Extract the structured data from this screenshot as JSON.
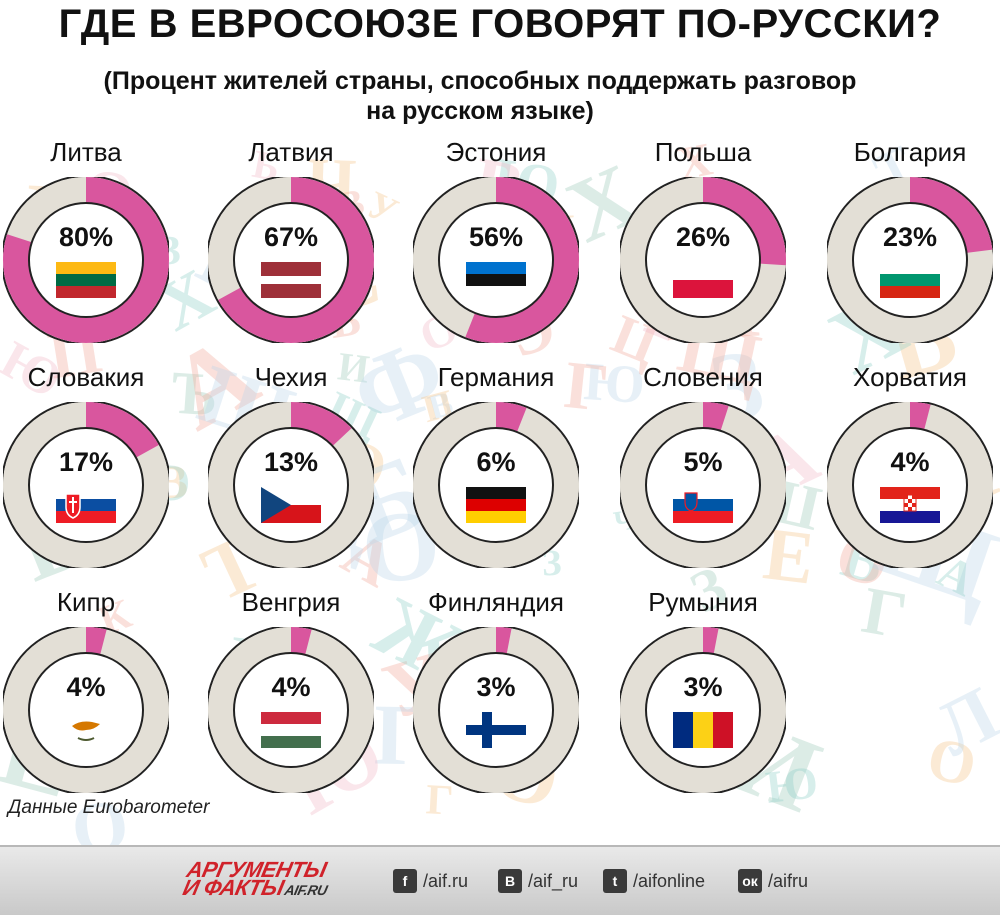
{
  "title": "ГДЕ В ЕВРОСОЮЗЕ ГОВОРЯТ ПО-РУССКИ?",
  "subtitle_line1": "(Процент жителей страны, способных поддержать разговор",
  "subtitle_line2": "на русском языке)",
  "source": "Данные Eurobarometer",
  "colors": {
    "highlight": "#d9569e",
    "track": "#e3dfd6",
    "border": "#222222"
  },
  "chart_data": {
    "type": "donut",
    "title": "ГДЕ В ЕВРОСОЮЗЕ ГОВОРЯТ ПО-РУССКИ?",
    "unit": "%",
    "categories": [
      "Литва",
      "Латвия",
      "Эстония",
      "Польша",
      "Болгария",
      "Словакия",
      "Чехия",
      "Германия",
      "Словения",
      "Хорватия",
      "Кипр",
      "Венгрия",
      "Финляндия",
      "Румыния"
    ],
    "values": [
      80,
      67,
      56,
      26,
      23,
      17,
      13,
      6,
      5,
      4,
      4,
      4,
      3,
      3
    ],
    "value_labels": [
      "80%",
      "67%",
      "56%",
      "26%",
      "23%",
      "17%",
      "13%",
      "6%",
      "5%",
      "4%",
      "4%",
      "4%",
      "3%",
      "3%"
    ],
    "flags": [
      "lithuania-flag",
      "latvia-flag",
      "estonia-flag",
      "poland-flag",
      "bulgaria-flag",
      "slovakia-flag",
      "czechia-flag",
      "germany-flag",
      "slovenia-flag",
      "croatia-flag",
      "cyprus-flag",
      "hungary-flag",
      "finland-flag",
      "romania-flag"
    ]
  },
  "footer": {
    "logo_line1": "АРГУМЕНТЫ",
    "logo_line2": "И ФАКТЫ",
    "logo_domain": "AIF.RU",
    "social": [
      {
        "icon": "facebook-icon",
        "glyph": "f",
        "text": "/aif.ru"
      },
      {
        "icon": "vkontakte-icon",
        "glyph": "В",
        "text": "/aif_ru"
      },
      {
        "icon": "twitter-icon",
        "glyph": "t",
        "text": "/aifonline"
      },
      {
        "icon": "odnoklassniki-icon",
        "glyph": "ок",
        "text": "/aifru"
      }
    ]
  }
}
